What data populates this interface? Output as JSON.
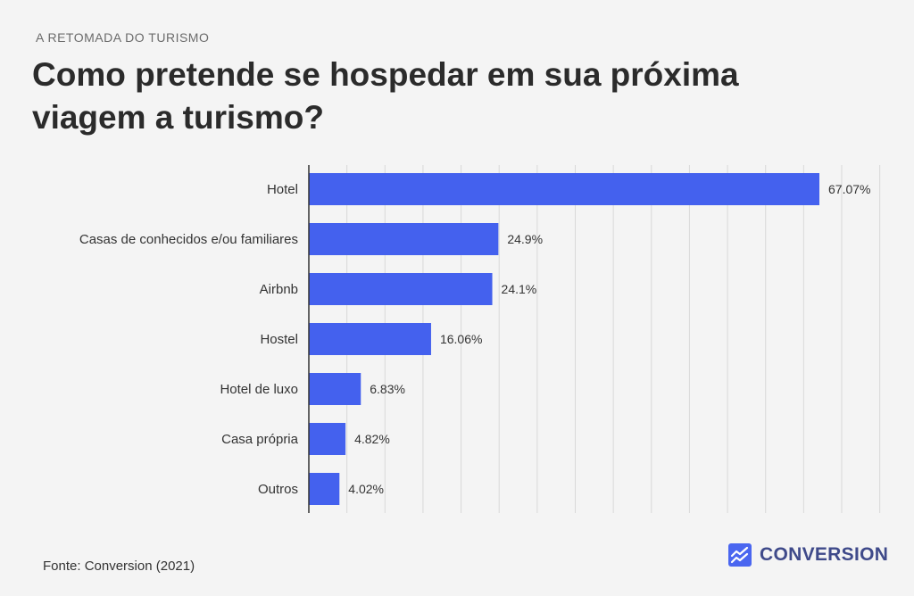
{
  "header": {
    "eyebrow": "A RETOMADA DO TURISMO",
    "title": "Como pretende se hospedar em sua próxima viagem a turismo?"
  },
  "footer": {
    "source": "Fonte: Conversion (2021)",
    "brand": "CONVERSION",
    "brand_icon": "chart-logo-icon"
  },
  "colors": {
    "bar": "#4461ee",
    "grid": "#d9d9d9",
    "axis": "#333333",
    "brand": "#4a66f0"
  },
  "chart_data": {
    "type": "bar",
    "orientation": "horizontal",
    "title": "Como pretende se hospedar em sua próxima viagem a turismo?",
    "categories": [
      "Hotel",
      "Casas de conhecidos e/ou familiares",
      "Airbnb",
      "Hostel",
      "Hotel de luxo",
      "Casa própria",
      "Outros"
    ],
    "values": [
      67.07,
      24.9,
      24.1,
      16.06,
      6.83,
      4.82,
      4.02
    ],
    "value_labels": [
      "67.07%",
      "24.9%",
      "24.1%",
      "16.06%",
      "6.83%",
      "4.82%",
      "4.02%"
    ],
    "xlim": [
      0,
      67.07
    ],
    "grid": true,
    "gridline_step": 5,
    "xlabel": "",
    "ylabel": ""
  }
}
